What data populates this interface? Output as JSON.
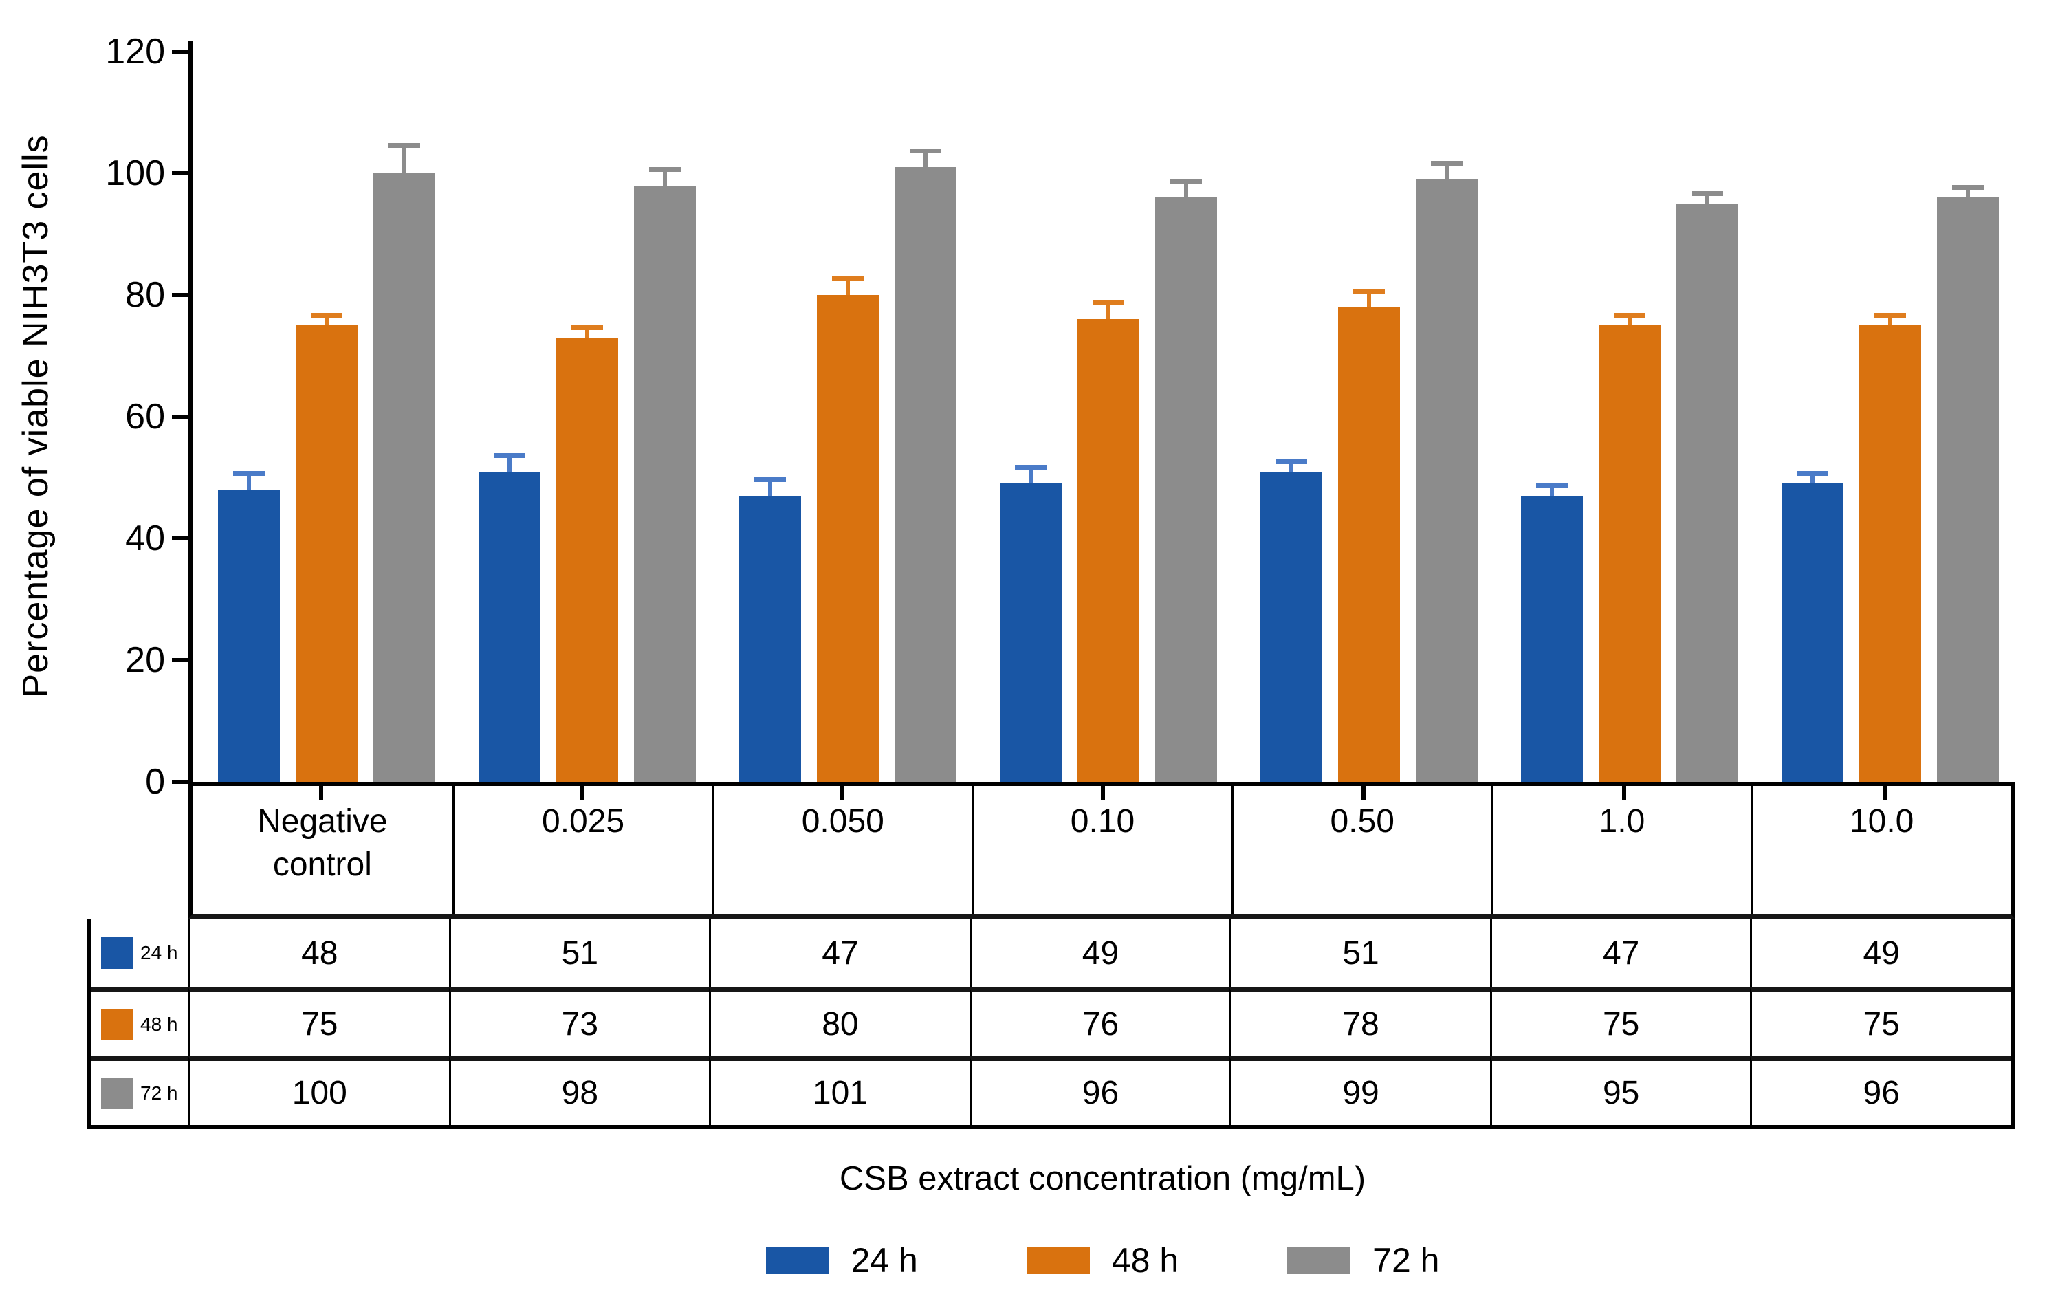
{
  "chart_data": {
    "type": "bar",
    "title": "",
    "xlabel": "CSB extract concentration (mg/mL)",
    "ylabel": "Percentage of viable NIH3T3 cells",
    "ylim": [
      0,
      120
    ],
    "y_ticks": [
      0,
      20,
      40,
      60,
      80,
      100,
      120
    ],
    "grid": false,
    "legend_position": "bottom",
    "error_bars": "plus-direction",
    "categories": [
      "Negative control",
      "0.025",
      "0.050",
      "0.10",
      "0.50",
      "1.0",
      "10.0"
    ],
    "series": [
      {
        "name": "24 h",
        "color": "#1956A5",
        "error_color": "#4A7BC8",
        "values": [
          48,
          51,
          47,
          49,
          51,
          47,
          49
        ],
        "errors": [
          3,
          3,
          3,
          3,
          2,
          2,
          2
        ]
      },
      {
        "name": "48 h",
        "color": "#D9720F",
        "error_color": "#DF7D1E",
        "values": [
          75,
          73,
          80,
          76,
          78,
          75,
          75
        ],
        "errors": [
          2,
          2,
          3,
          3,
          3,
          2,
          2
        ]
      },
      {
        "name": "72 h",
        "color": "#8C8C8C",
        "error_color": "#8C8C8C",
        "values": [
          100,
          98,
          101,
          96,
          99,
          95,
          96
        ],
        "errors": [
          5,
          3,
          3,
          3,
          3,
          2,
          2
        ]
      }
    ]
  }
}
